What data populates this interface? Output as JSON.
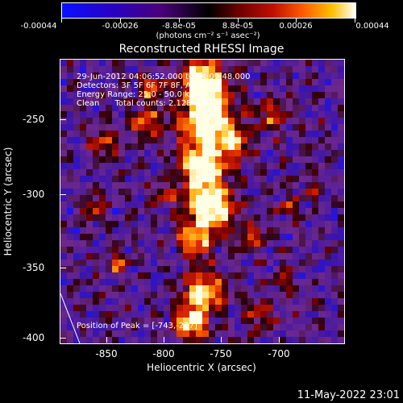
{
  "colorbar": {
    "ticks": [
      "-0.00044",
      "-0.00026",
      "-8.8e-05",
      "8.8e-05",
      "0.00026",
      "0.00044"
    ],
    "units": "(photons cm⁻² s⁻¹ asec⁻²)"
  },
  "title": "Reconstructed RHESSI Image",
  "info": {
    "time": "29-Jun-2012 04:06:52.000 to 04:09:48.000",
    "detectors": "Detectors: 3F 5F 6F 7F 8F, Att 0",
    "energy": "Energy Range: 25.0 - 50.0 keV",
    "clean": "Clean      Total counts: 2.12E+03",
    "peak": "Position of Peak = [-743,-227]"
  },
  "axes": {
    "xlabel": "Heliocentric X (arcsec)",
    "ylabel": "Heliocentric Y (arcsec)",
    "xticks": [
      "-850",
      "-800",
      "-750",
      "-700"
    ],
    "yticks": [
      "-250",
      "-300",
      "-350",
      "-400"
    ],
    "xrange": [
      -873,
      -677
    ],
    "yrange": [
      -402,
      -205
    ]
  },
  "date_stamp": "11-May-2022 23:01"
}
